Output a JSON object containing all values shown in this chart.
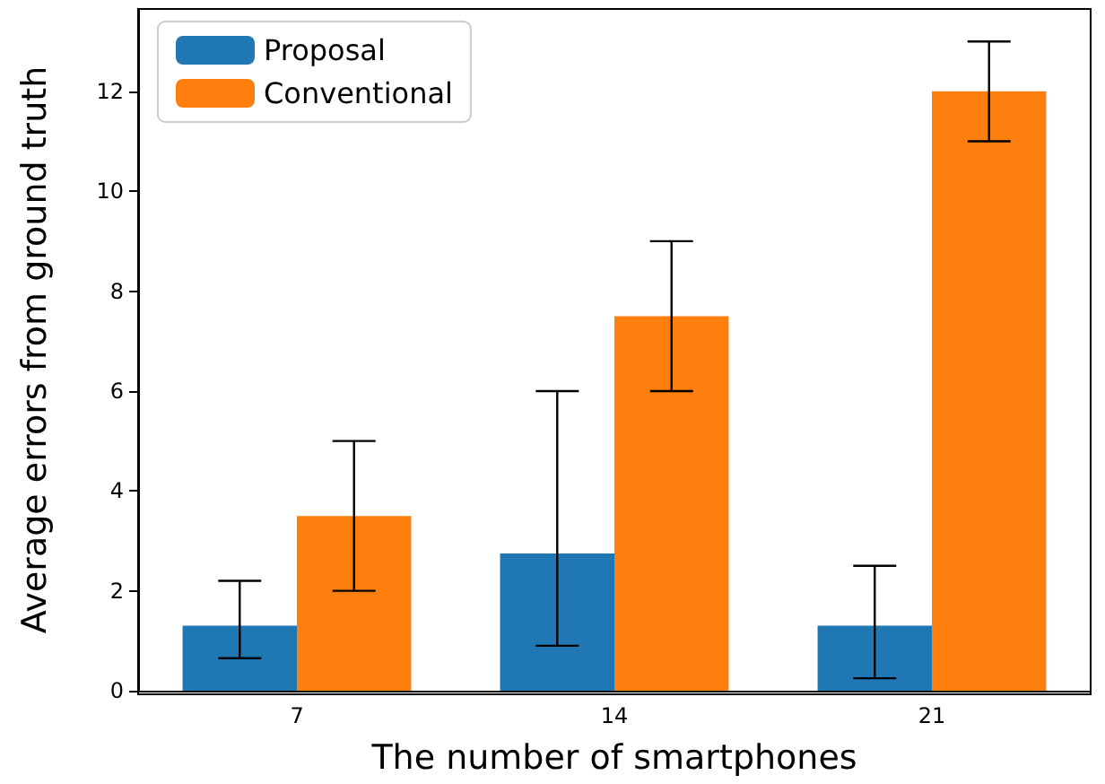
{
  "chart_data": {
    "type": "bar",
    "xlabel": "The number of smartphones",
    "ylabel": "Average errors from ground truth",
    "categories": [
      "7",
      "14",
      "21"
    ],
    "series": [
      {
        "name": "Proposal",
        "color": "#1f77b4",
        "values": [
          1.3,
          2.75,
          1.3
        ],
        "errors": [
          [
            0.65,
            2.2
          ],
          [
            0.9,
            6
          ],
          [
            0.25,
            2.5
          ]
        ]
      },
      {
        "name": "Conventional",
        "color": "#ff7f0e",
        "values": [
          3.5,
          7.5,
          12
        ],
        "errors": [
          [
            2,
            5
          ],
          [
            6,
            9
          ],
          [
            11,
            13
          ]
        ]
      }
    ],
    "ylim": [
      0,
      13.65
    ],
    "yticks": [
      0,
      2,
      4,
      6,
      8,
      10,
      12
    ],
    "grid": false,
    "legend": "top left"
  }
}
